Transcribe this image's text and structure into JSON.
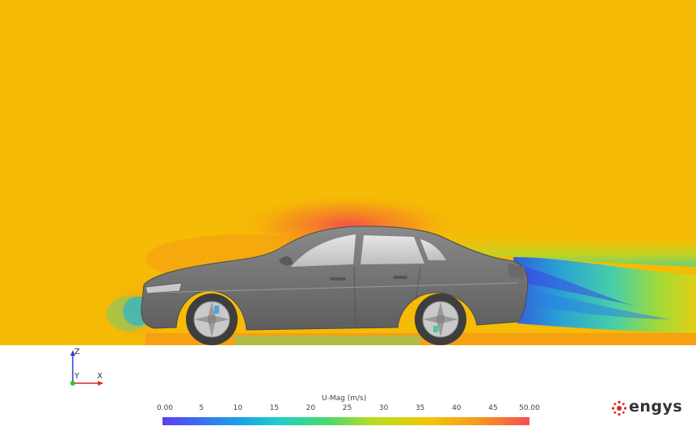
{
  "scene": {
    "background_color": "#f5bb05",
    "car_color": "#777777",
    "subject": "sedan-car"
  },
  "axes": {
    "z_label": "Z",
    "y_label": "Y",
    "x_label": "X",
    "z_color": "#2a3fd6",
    "x_color": "#d62a2a",
    "y_color": "#2ec42e"
  },
  "colorbar": {
    "title": "U-Mag (m/s)",
    "ticks": [
      "0.00",
      "5",
      "10",
      "15",
      "20",
      "25",
      "30",
      "35",
      "40",
      "45",
      "50.00"
    ],
    "min": 0,
    "max": 50
  },
  "logo": {
    "text": "engys",
    "color": "#d62a2a"
  }
}
